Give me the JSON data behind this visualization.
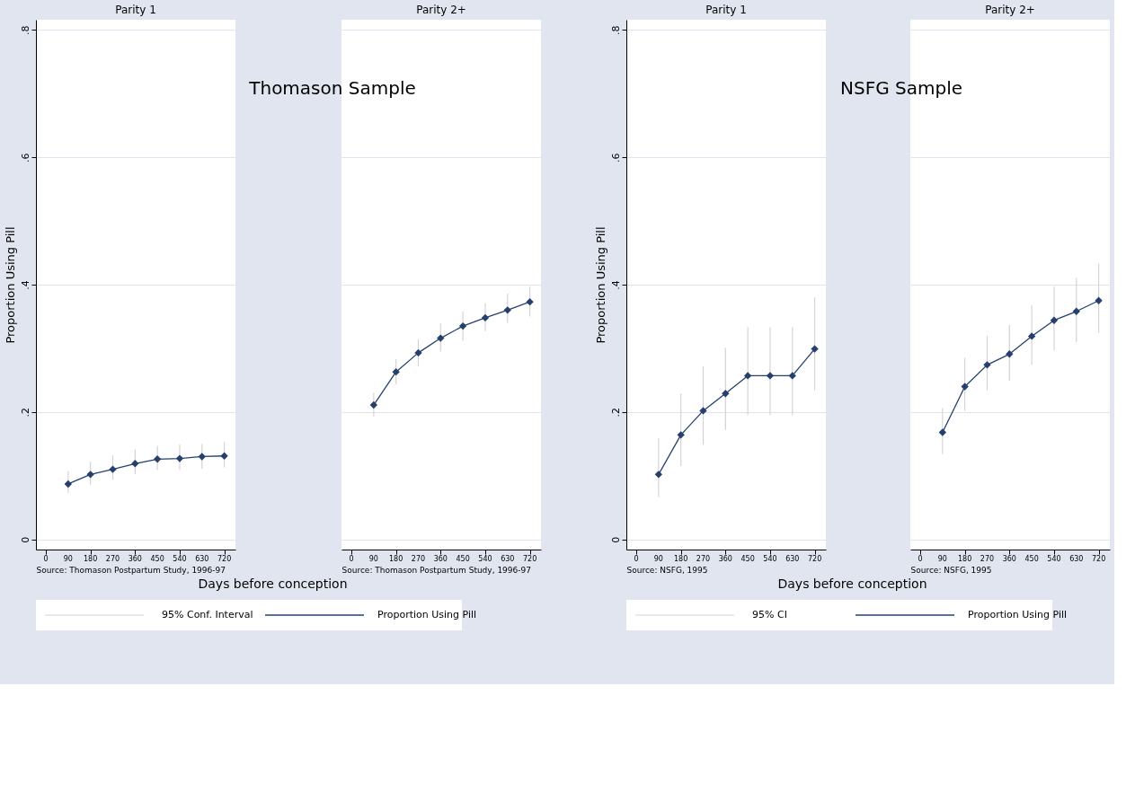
{
  "chart_data": [
    {
      "type": "line",
      "title": "Parity 1",
      "xlabel": "Days before conception",
      "ylabel": "Proportion Using Pill",
      "x": [
        90,
        180,
        270,
        360,
        450,
        540,
        630,
        720
      ],
      "series": [
        {
          "name": "Proportion Using Pill",
          "color": "#26406e",
          "values": [
            0.087,
            0.102,
            0.11,
            0.119,
            0.126,
            0.127,
            0.13,
            0.131
          ],
          "errors": [
            [
              0.073,
              0.107
            ],
            [
              0.086,
              0.122
            ],
            [
              0.094,
              0.132
            ],
            [
              0.102,
              0.141
            ],
            [
              0.109,
              0.147
            ],
            [
              0.109,
              0.149
            ],
            [
              0.111,
              0.15
            ],
            [
              0.113,
              0.153
            ]
          ]
        }
      ],
      "xlim": [
        -40,
        765
      ],
      "xticks": [
        0,
        90,
        180,
        270,
        360,
        450,
        540,
        630,
        720
      ],
      "ylim": [
        -0.016,
        0.816
      ],
      "yticks": [
        0,
        {
          "value": 0.2,
          "label": ".2"
        },
        {
          "value": 0.4,
          "label": ".4"
        },
        {
          "value": 0.6,
          "label": ".6"
        },
        {
          "value": 0.8,
          "label": ".8"
        }
      ],
      "grid": "y",
      "marker": "diamond",
      "line_style": "solid",
      "legend": "bottom",
      "annotations": [
        "Source: Thomason Postpartum Study, 1996-97",
        "95% Conf. Interval"
      ]
    },
    {
      "type": "line",
      "title": "Parity 2+",
      "x": [
        90,
        180,
        270,
        360,
        450,
        540,
        630,
        720
      ],
      "series": [
        {
          "color": "#26406e",
          "values": [
            0.211,
            0.263,
            0.293,
            0.316,
            0.335,
            0.348,
            0.36,
            0.373
          ],
          "errors": [
            [
              0.193,
              0.23
            ],
            [
              0.243,
              0.283
            ],
            [
              0.272,
              0.314
            ],
            [
              0.295,
              0.339
            ],
            [
              0.312,
              0.358
            ],
            [
              0.327,
              0.371
            ],
            [
              0.34,
              0.386
            ],
            [
              0.35,
              0.397
            ]
          ]
        }
      ],
      "xlim": [
        -40,
        765
      ],
      "xticks": [
        0,
        90,
        180,
        270,
        360,
        450,
        540,
        630,
        720
      ],
      "ylim": [
        -0.016,
        0.816
      ],
      "yticks": [
        0,
        0.2,
        0.4,
        0.6,
        0.8
      ],
      "grid": "y",
      "marker": "diamond",
      "line_style": "solid",
      "tick_labels": "x",
      "annotations": [
        "Source: Thomason Postpartum Study, 1996-97",
        "Thomason Sample"
      ]
    },
    {
      "type": "line",
      "title": "Parity 1",
      "xlabel": "Days before conception",
      "ylabel": "Proportion Using Pill",
      "x": [
        90,
        180,
        270,
        360,
        450,
        540,
        630,
        720
      ],
      "series": [
        {
          "name": "Proportion Using Pill",
          "color": "#26406e",
          "values": [
            0.102,
            0.164,
            0.202,
            0.229,
            0.257,
            0.257,
            0.257,
            0.299
          ],
          "errors": [
            [
              0.066,
              0.159
            ],
            [
              0.115,
              0.229
            ],
            [
              0.149,
              0.272
            ],
            [
              0.172,
              0.301
            ],
            [
              0.195,
              0.333
            ],
            [
              0.195,
              0.333
            ],
            [
              0.195,
              0.333
            ],
            [
              0.234,
              0.38
            ]
          ]
        }
      ],
      "xlim": [
        -40,
        765
      ],
      "xticks": [
        0,
        90,
        180,
        270,
        360,
        450,
        540,
        630,
        720
      ],
      "ylim": [
        -0.016,
        0.816
      ],
      "yticks": [
        0,
        {
          "value": 0.2,
          "label": ".2"
        },
        {
          "value": 0.4,
          "label": ".4"
        },
        {
          "value": 0.6,
          "label": ".6"
        },
        {
          "value": 0.8,
          "label": ".8"
        }
      ],
      "grid": "y",
      "marker": "diamond",
      "line_style": "solid",
      "legend": "bottom",
      "annotations": [
        "Source: NSFG, 1995",
        "95% CI"
      ]
    },
    {
      "type": "line",
      "title": "Parity 2+",
      "x": [
        90,
        180,
        270,
        360,
        450,
        540,
        630,
        720
      ],
      "series": [
        {
          "color": "#26406e",
          "values": [
            0.168,
            0.24,
            0.274,
            0.291,
            0.319,
            0.344,
            0.358,
            0.375
          ],
          "errors": [
            [
              0.134,
              0.206
            ],
            [
              0.202,
              0.285
            ],
            [
              0.234,
              0.32
            ],
            [
              0.249,
              0.337
            ],
            [
              0.274,
              0.368
            ],
            [
              0.297,
              0.397
            ],
            [
              0.31,
              0.411
            ],
            [
              0.324,
              0.433
            ]
          ]
        }
      ],
      "xlim": [
        -40,
        765
      ],
      "xticks": [
        0,
        90,
        180,
        270,
        360,
        450,
        540,
        630,
        720
      ],
      "ylim": [
        -0.016,
        0.816
      ],
      "yticks": [
        0,
        0.2,
        0.4,
        0.6,
        0.8
      ],
      "grid": "y",
      "marker": "diamond",
      "line_style": "solid",
      "tick_labels": "x",
      "annotations": [
        "Source: NSFG, 1995",
        "NSFG Sample"
      ]
    }
  ]
}
